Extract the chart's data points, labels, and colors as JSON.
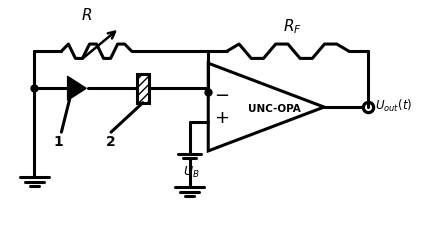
{
  "bg_color": "#ffffff",
  "line_color": "#000000",
  "line_width": 2.2,
  "fig_width": 4.22,
  "fig_height": 2.42,
  "labels": {
    "R": "$R$",
    "RF": "$R_F$",
    "UB": "$U_B$",
    "Uout": "$U_{out}(t)$",
    "label1": "1",
    "label2": "2",
    "amp_label": "UNC-OPA"
  }
}
